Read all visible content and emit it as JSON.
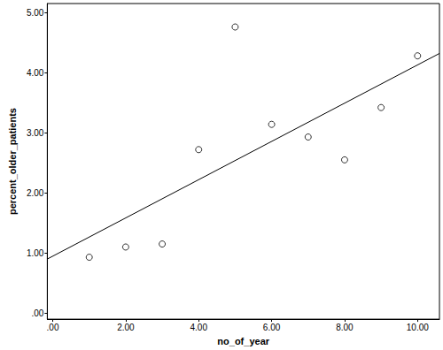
{
  "chart_data": {
    "type": "scatter",
    "x_label": "no_of_year",
    "y_label": "percent_older_patients",
    "x": [
      1,
      2,
      3,
      4,
      5,
      6,
      7,
      8,
      9,
      10
    ],
    "values": [
      0.93,
      1.1,
      1.15,
      2.72,
      4.76,
      3.14,
      2.93,
      2.55,
      3.42,
      4.28
    ],
    "fit_line": {
      "x": [
        -0.15,
        10.6
      ],
      "y": [
        0.9,
        4.32
      ]
    },
    "xlim": [
      -0.15,
      10.6
    ],
    "ylim": [
      -0.1,
      5.15
    ],
    "xticks": [
      {
        "value": 0,
        "label": ".00"
      },
      {
        "value": 2,
        "label": "2.00"
      },
      {
        "value": 4,
        "label": "4.00"
      },
      {
        "value": 6,
        "label": "6.00"
      },
      {
        "value": 8,
        "label": "8.00"
      },
      {
        "value": 10,
        "label": "10.00"
      }
    ],
    "yticks": [
      {
        "value": 0,
        "label": ".00"
      },
      {
        "value": 1,
        "label": "1.00"
      },
      {
        "value": 2,
        "label": "2.00"
      },
      {
        "value": 3,
        "label": "3.00"
      },
      {
        "value": 4,
        "label": "4.00"
      },
      {
        "value": 5,
        "label": "5.00"
      }
    ],
    "marker": "circle",
    "color": "#000000",
    "grid": false
  }
}
